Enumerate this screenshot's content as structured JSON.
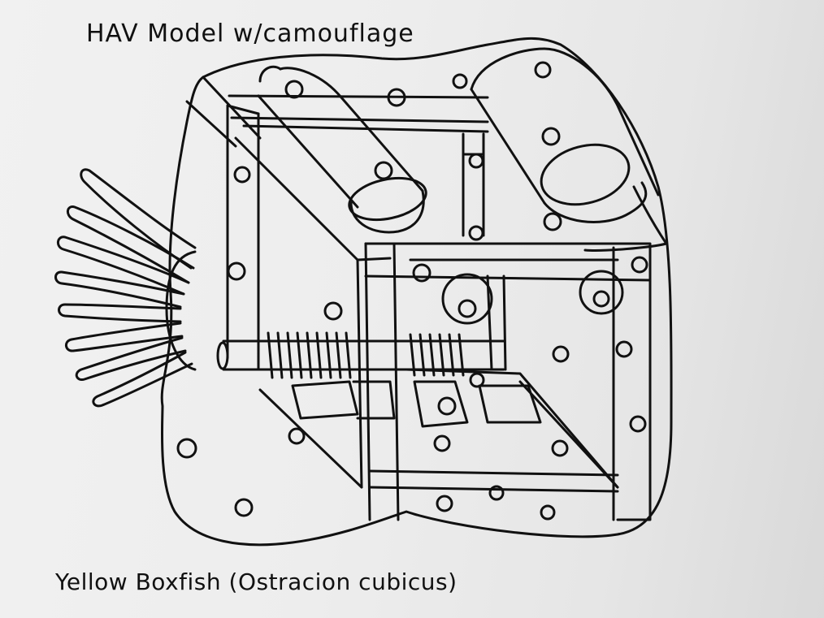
{
  "title": "HAV Model w/camouflage",
  "caption": "Yellow Boxfish (Ostracion cubicus)"
}
